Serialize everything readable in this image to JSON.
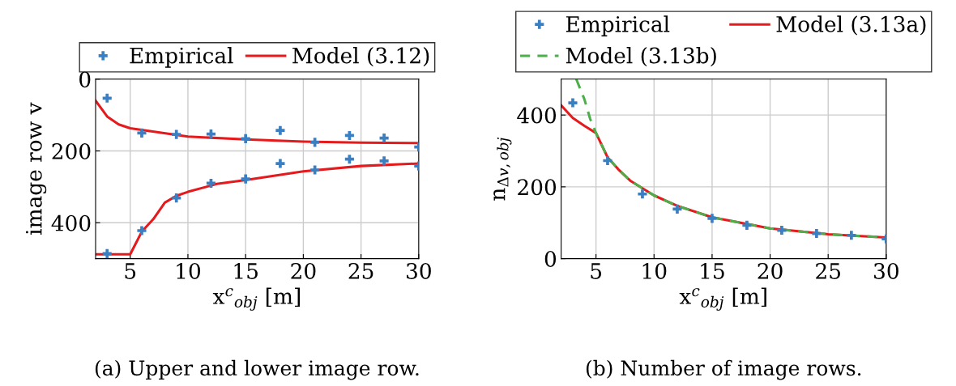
{
  "chart_data": [
    {
      "type": "line",
      "xlabel": "x$^{c}$$_{obj}$ [m]",
      "ylabel": "image row v",
      "xlim": [
        2,
        30
      ],
      "xticks": [
        5,
        10,
        15,
        20,
        25,
        30
      ],
      "ylim": [
        500,
        0
      ],
      "yticks": [
        0,
        200,
        400
      ],
      "grid": true,
      "legend": "top",
      "annotations": [
        "(a) Upper and lower image row."
      ],
      "series": [
        {
          "name": "Empirical",
          "type": "scatter",
          "marker": "cross",
          "color": "#3a7fc1",
          "x": [
            3,
            6,
            9,
            12,
            15,
            18,
            21,
            24,
            27,
            30
          ],
          "values": [
            53,
            150,
            154,
            153,
            166,
            143,
            176,
            157,
            164,
            189
          ]
        },
        {
          "type": "scatter",
          "marker": "cross",
          "color": "#3a7fc1",
          "x": [
            3,
            6,
            9,
            12,
            15,
            18,
            21,
            24,
            27,
            30
          ],
          "values": [
            486,
            422,
            331,
            290,
            278,
            235,
            253,
            223,
            228,
            242
          ]
        },
        {
          "name": "Model (3.12)",
          "line_style": "solid",
          "color": "#e41a1c",
          "x": [
            2,
            3,
            4,
            5,
            10,
            15,
            20,
            25,
            30
          ],
          "values": [
            60,
            104,
            126,
            137,
            160,
            168,
            174,
            177,
            178
          ]
        },
        {
          "line_style": "solid",
          "color": "#e41a1c",
          "x": [
            2,
            5,
            6,
            7,
            8,
            9,
            10,
            12.5,
            15,
            20,
            25,
            30
          ],
          "values": [
            488,
            488,
            425,
            390,
            344,
            325,
            314,
            292,
            281,
            257,
            242,
            235
          ]
        }
      ]
    },
    {
      "type": "line",
      "xlabel": "x$^{c}$$_{obj}$ [m]",
      "ylabel": "n$_{Δv,obj}$",
      "xlim": [
        2,
        30
      ],
      "xticks": [
        5,
        10,
        15,
        20,
        25,
        30
      ],
      "ylim": [
        0,
        500
      ],
      "yticks": [
        0,
        200,
        400
      ],
      "grid": true,
      "legend": "top",
      "annotations": [
        "(b) Number of image rows."
      ],
      "series": [
        {
          "name": "Empirical",
          "type": "scatter",
          "marker": "cross",
          "color": "#3a7fc1",
          "x": [
            3,
            6,
            9,
            12,
            15,
            18,
            21,
            24,
            27,
            30
          ],
          "values": [
            434,
            273,
            180,
            138,
            112,
            93,
            79,
            70,
            65,
            55
          ]
        },
        {
          "name": "Model (3.13a)",
          "line_style": "solid",
          "color": "#e41a1c",
          "x": [
            2,
            3,
            4,
            5,
            6,
            7,
            8,
            10,
            12,
            15,
            20,
            25,
            30
          ],
          "values": [
            427,
            392,
            370,
            350,
            282,
            246,
            216,
            176,
            147,
            115,
            84,
            68,
            59
          ]
        },
        {
          "name": "Model (3.13b)",
          "line_style": "dashed",
          "color": "#4daf4a",
          "x": [
            3.3,
            4,
            4.5,
            5,
            6,
            7,
            8,
            10,
            12,
            15,
            20,
            25,
            30
          ],
          "values": [
            500,
            444,
            389,
            350,
            282,
            246,
            216,
            176,
            147,
            115,
            84,
            68,
            59
          ]
        }
      ]
    }
  ]
}
